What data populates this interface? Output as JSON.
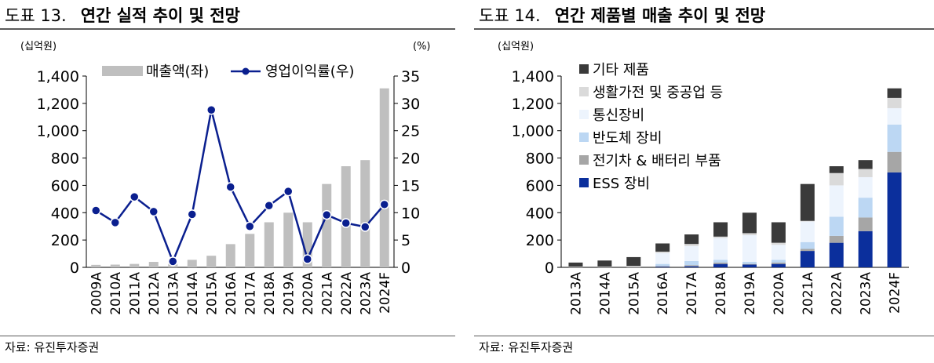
{
  "chart_data": [
    {
      "type": "bar",
      "fig_label": "도표 13.",
      "title": "연간 실적 추이 및 전망",
      "y_unit_left": "(십억원)",
      "y_unit_right": "(%)",
      "categories": [
        "2009A",
        "2010A",
        "2011A",
        "2012A",
        "2013A",
        "2014A",
        "2015A",
        "2016A",
        "2017A",
        "2018A",
        "2019A",
        "2020A",
        "2021A",
        "2022A",
        "2023A",
        "2024F"
      ],
      "ylim": [
        0,
        1400
      ],
      "yticks": [
        "0",
        "200",
        "400",
        "600",
        "800",
        "1,000",
        "1,200",
        "1,400"
      ],
      "y2lim": [
        0,
        35
      ],
      "y2ticks": [
        "0",
        "5",
        "10",
        "15",
        "20",
        "25",
        "30",
        "35"
      ],
      "series": [
        {
          "name": "매출액(좌)",
          "type": "bar",
          "axis": "left",
          "color": "#bfbfbf",
          "values": [
            18,
            20,
            25,
            40,
            25,
            55,
            85,
            170,
            245,
            330,
            400,
            330,
            610,
            740,
            785,
            1310
          ]
        },
        {
          "name": "영업이익률(우)",
          "type": "line",
          "axis": "right",
          "color": "#0a1f8f",
          "values": [
            10.4,
            8.2,
            12.9,
            10.2,
            1.1,
            9.7,
            28.8,
            14.7,
            7.5,
            11.3,
            13.9,
            1.5,
            9.6,
            8.1,
            7.4,
            11.5
          ]
        }
      ],
      "grid": false,
      "legend": "top",
      "source": "자료: 유진투자증권"
    },
    {
      "type": "stacked-bar",
      "fig_label": "도표 14.",
      "title": "연간 제품별 매출 추이 및 전망",
      "y_unit_left": "(십억원)",
      "categories": [
        "2013A",
        "2014A",
        "2015A",
        "2016A",
        "2017A",
        "2018A",
        "2019A",
        "2020A",
        "2021A",
        "2022A",
        "2023A",
        "2024F"
      ],
      "ylim": [
        0,
        1400
      ],
      "yticks": [
        "0",
        "200",
        "400",
        "600",
        "800",
        "1,000",
        "1,200",
        "1,400"
      ],
      "series": [
        {
          "name": "ESS 장비",
          "color": "#0b2f9c",
          "values": [
            0,
            0,
            0,
            5,
            8,
            25,
            20,
            25,
            120,
            180,
            265,
            695
          ]
        },
        {
          "name": "전기차 & 배터리 부품",
          "color": "#a6a6a6",
          "values": [
            0,
            0,
            0,
            5,
            8,
            10,
            5,
            10,
            15,
            50,
            100,
            150
          ]
        },
        {
          "name": "반도체 장비",
          "color": "#bcd7f3",
          "values": [
            0,
            0,
            0,
            15,
            30,
            20,
            15,
            20,
            50,
            140,
            145,
            200
          ]
        },
        {
          "name": "통신장비",
          "color": "#edf4fd",
          "values": [
            0,
            0,
            0,
            80,
            110,
            160,
            195,
            110,
            150,
            230,
            150,
            120
          ]
        },
        {
          "name": "생활가전 및 중공업 등",
          "color": "#dadada",
          "values": [
            5,
            5,
            10,
            10,
            15,
            10,
            15,
            15,
            5,
            90,
            60,
            75
          ]
        },
        {
          "name": "기타 제품",
          "color": "#3a3a3a",
          "values": [
            30,
            45,
            65,
            60,
            70,
            105,
            150,
            150,
            270,
            50,
            65,
            70
          ]
        }
      ],
      "grid": false,
      "legend": "top-left",
      "source": "자료: 유진투자증권"
    }
  ]
}
